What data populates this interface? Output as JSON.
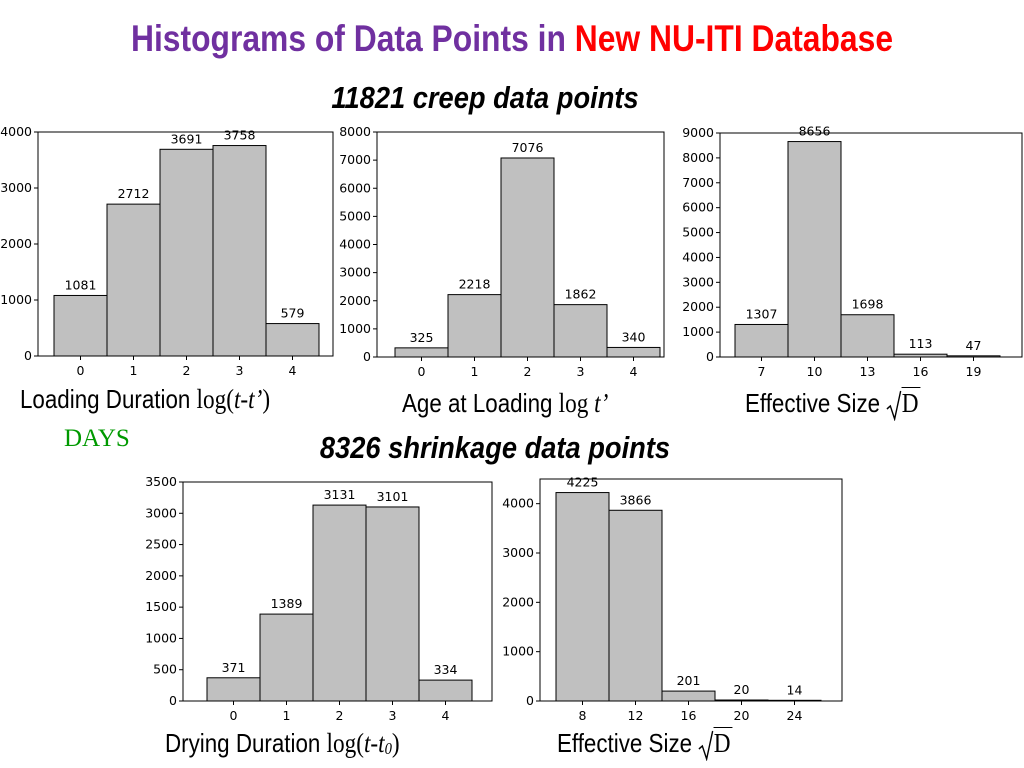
{
  "title": {
    "part1": "Histograms of Data Points in ",
    "part2": "New NU-ITI Database"
  },
  "creep_heading": "11821 creep data points",
  "shrinkage_heading": "8326 shrinkage data points",
  "captions": {
    "loading": {
      "text": "Loading Duration ",
      "math_fn": "log(",
      "math_var": "t-t’",
      "math_close": ")",
      "units": "DAYS"
    },
    "age": {
      "text": "Age at Loading ",
      "math_fn": "log ",
      "math_var": "t’"
    },
    "eff_size_creep": {
      "text": "Effective Size ",
      "radicand": "D"
    },
    "drying": {
      "text": "Drying Duration ",
      "math_fn": "log(",
      "math_var": "t-t",
      "math_sub": "0",
      "math_close": ")"
    },
    "eff_size_shrink": {
      "text": "Effective Size ",
      "radicand": "D"
    }
  },
  "colors": {
    "title_purple": "#7030a0",
    "title_red": "#ff0000",
    "days_green": "#009900",
    "bar_fill": "#c0c0c0"
  },
  "chart_data": [
    {
      "id": "chart-loading-duration",
      "type": "bar",
      "categories": [
        "0",
        "1",
        "2",
        "3",
        "4"
      ],
      "values": [
        1081,
        2712,
        3691,
        3758,
        579
      ],
      "data_labels": [
        "1081",
        "2712",
        "3691",
        "3758",
        "579"
      ],
      "yticks": [
        0,
        1000,
        2000,
        3000,
        4000
      ],
      "ylim": [
        0,
        4000
      ]
    },
    {
      "id": "chart-age-at-loading",
      "type": "bar",
      "categories": [
        "0",
        "1",
        "2",
        "3",
        "4"
      ],
      "values": [
        325,
        2218,
        7076,
        1862,
        340
      ],
      "data_labels": [
        "325",
        "2218",
        "7076",
        "1862",
        "340"
      ],
      "yticks": [
        0,
        1000,
        2000,
        3000,
        4000,
        5000,
        6000,
        7000,
        8000
      ],
      "ylim": [
        0,
        8000
      ]
    },
    {
      "id": "chart-effective-size-creep",
      "type": "bar",
      "categories": [
        "7",
        "10",
        "13",
        "16",
        "19"
      ],
      "values": [
        1307,
        8656,
        1698,
        113,
        47
      ],
      "data_labels": [
        "1307",
        "8656",
        "1698",
        "113",
        "47"
      ],
      "yticks": [
        0,
        1000,
        2000,
        3000,
        4000,
        5000,
        6000,
        7000,
        8000,
        9000
      ],
      "ylim": [
        0,
        9000
      ]
    },
    {
      "id": "chart-drying-duration",
      "type": "bar",
      "categories": [
        "0",
        "1",
        "2",
        "3",
        "4"
      ],
      "values": [
        371,
        1389,
        3131,
        3101,
        334
      ],
      "data_labels": [
        "371",
        "1389",
        "3131",
        "3101",
        "334"
      ],
      "yticks": [
        0,
        500,
        1000,
        1500,
        2000,
        2500,
        3000,
        3500
      ],
      "ylim": [
        0,
        3500
      ]
    },
    {
      "id": "chart-effective-size-shrinkage",
      "type": "bar",
      "categories": [
        "8",
        "12",
        "16",
        "20",
        "24"
      ],
      "values": [
        4225,
        3866,
        201,
        20,
        14
      ],
      "data_labels": [
        "4225",
        "3866",
        "201",
        "20",
        "14"
      ],
      "yticks": [
        0,
        1000,
        2000,
        3000,
        4000
      ],
      "ylim": [
        0,
        4500
      ]
    }
  ]
}
